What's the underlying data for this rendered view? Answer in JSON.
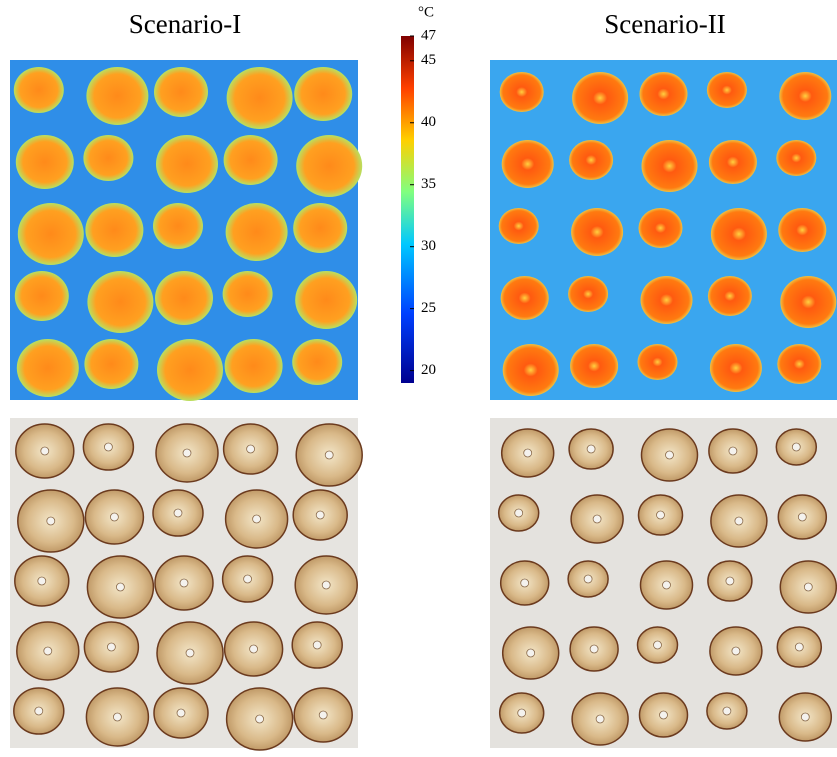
{
  "titles": [
    "Scenario-I",
    "Scenario-II"
  ],
  "colorbar": {
    "unit": "°C",
    "lim": [
      19,
      47
    ],
    "ticks": [
      20,
      25,
      30,
      35,
      40,
      45,
      47
    ]
  }
}
